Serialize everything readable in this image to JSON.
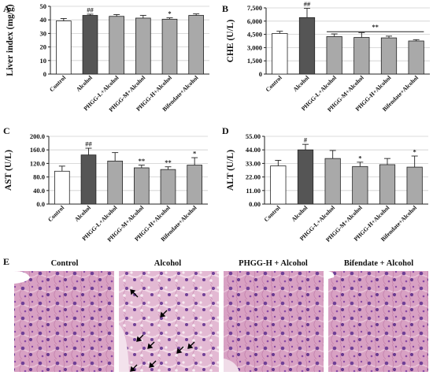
{
  "colors": {
    "control_fill": "#ffffff",
    "alcohol_fill": "#555555",
    "treatment_fill": "#a9a9a9",
    "stroke": "#222222",
    "tissue_bg": "#d9a3c4",
    "tissue_nucleus": "#6e3f95",
    "tissue_cyto": "#e07bb0"
  },
  "chart_data": [
    {
      "id": "A",
      "panel_label": "A",
      "type": "bar",
      "ylabel": "Liver index (mg/g)",
      "ylim": [
        0,
        50
      ],
      "yticks": [
        "0",
        "10",
        "20",
        "30",
        "40",
        "50"
      ],
      "categories": [
        "Control",
        "Alcohol",
        "PHGG-L+Alcohol",
        "PHGG-M+Alcohol",
        "PHGG-H+Alcohol",
        "Bifendate+Alcohol"
      ],
      "values": [
        39.2,
        43.3,
        42.6,
        41.3,
        40.5,
        43.3
      ],
      "errors": [
        1.8,
        0.9,
        1.3,
        2.0,
        1.0,
        1.1
      ],
      "significance": [
        "",
        "##",
        "",
        "",
        "*",
        ""
      ],
      "bracket": null
    },
    {
      "id": "B",
      "panel_label": "B",
      "type": "bar",
      "ylabel": "CHE (U/L)",
      "ylim": [
        0,
        7500
      ],
      "yticks": [
        "0",
        "1,500",
        "3,000",
        "4,500",
        "6,000",
        "7,500"
      ],
      "categories": [
        "Control",
        "Alcohol",
        "PHGG-L+Alcohol",
        "PHGG-M+Alcohol",
        "PHGG-H+Alcohol",
        "Bifendate+Alcohol"
      ],
      "values": [
        4600,
        6400,
        4250,
        4150,
        4100,
        3750
      ],
      "errors": [
        250,
        1050,
        300,
        550,
        200,
        150
      ],
      "significance": [
        "",
        "##",
        "",
        "",
        "",
        ""
      ],
      "bracket": {
        "from": 2,
        "to": 5,
        "y": 4800,
        "label": "**"
      }
    },
    {
      "id": "C",
      "panel_label": "C",
      "type": "bar",
      "ylabel": "AST (U/L)",
      "ylim": [
        0,
        200
      ],
      "yticks": [
        "0.0",
        "40.0",
        "80.0",
        "120.0",
        "160.0",
        "200.0"
      ],
      "categories": [
        "Control",
        "Alcohol",
        "PHGG-L+Alcohol",
        "PHGG-M+Alcohol",
        "PHGG-H+Alcohol",
        "Bifendate+Alcohol"
      ],
      "values": [
        97,
        145,
        127,
        107,
        102,
        115
      ],
      "errors": [
        15,
        20,
        25,
        8,
        8,
        22
      ],
      "significance": [
        "",
        "##",
        "",
        "**",
        "**",
        "*"
      ],
      "bracket": null
    },
    {
      "id": "D",
      "panel_label": "D",
      "type": "bar",
      "ylabel": "ALT (U/L)",
      "ylim": [
        0,
        55
      ],
      "yticks": [
        "0.00",
        "11.00",
        "22.00",
        "33.00",
        "44.00",
        "55.00"
      ],
      "categories": [
        "Control",
        "Alcohol",
        "PHGG-L+Alcohol",
        "PHGG-M+Alcohol",
        "PHGG-H+Alcohol",
        "Bifendate+Alcohol"
      ],
      "values": [
        31,
        44,
        37,
        30.5,
        32,
        30
      ],
      "errors": [
        4.5,
        4.5,
        6.5,
        3.5,
        5,
        9
      ],
      "significance": [
        "",
        "#",
        "",
        "*",
        "",
        "*"
      ],
      "bracket": null
    }
  ],
  "histology": {
    "panel_label": "E",
    "titles": [
      "Control",
      "Alcohol",
      "PHGG-H + Alcohol",
      "Bifendate + Alcohol"
    ]
  }
}
